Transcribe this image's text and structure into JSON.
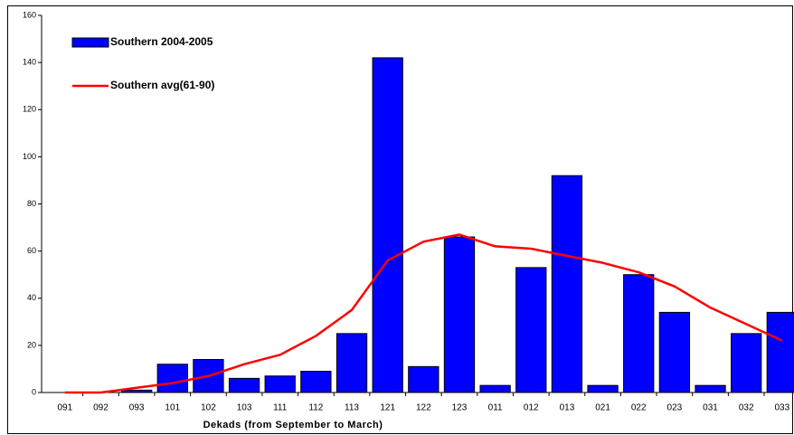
{
  "chart_data": {
    "type": "bar",
    "x_label": "Dekads (from September to March)",
    "categories": [
      "091",
      "092",
      "093",
      "101",
      "102",
      "103",
      "111",
      "112",
      "113",
      "121",
      "122",
      "123",
      "011",
      "012",
      "013",
      "021",
      "022",
      "023",
      "031",
      "032",
      "033"
    ],
    "series": [
      {
        "name": "Southern 2004-2005",
        "type": "bar",
        "color": "#0000ff",
        "values": [
          0,
          0,
          1,
          12,
          14,
          6,
          7,
          9,
          25,
          142,
          11,
          66,
          3,
          53,
          92,
          3,
          50,
          34,
          3,
          25,
          34
        ]
      },
      {
        "name": "Southern avg(61-90)",
        "type": "line",
        "color": "#ff0000",
        "values": [
          0,
          0,
          2,
          4,
          7,
          12,
          16,
          24,
          35,
          56,
          64,
          67,
          62,
          61,
          58,
          55,
          51,
          45,
          36,
          29,
          22
        ]
      }
    ],
    "ylim": [
      0,
      160
    ],
    "yticks": [
      0,
      20,
      40,
      60,
      80,
      100,
      120,
      140,
      160
    ],
    "grid": false,
    "legend": "top-left"
  }
}
